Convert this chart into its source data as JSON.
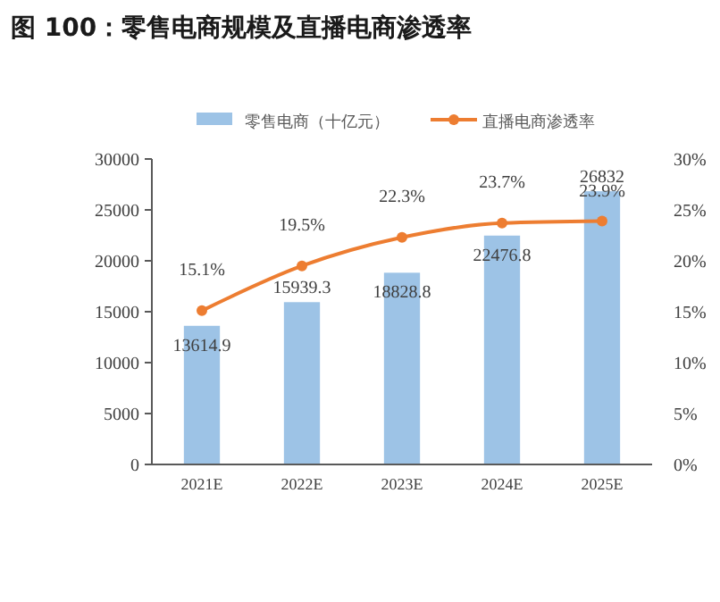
{
  "chart_data": {
    "type": "bar",
    "title": "图 100：零售电商规模及直播电商渗透率",
    "categories": [
      "2021E",
      "2022E",
      "2023E",
      "2024E",
      "2025E"
    ],
    "series": [
      {
        "name": "零售电商（十亿元）",
        "color": "#9dc3e6",
        "values": [
          13614.9,
          15939.3,
          18828.8,
          22476.8,
          26832
        ],
        "value_labels": [
          "13614.9",
          "15939.3",
          "18828.8",
          "22476.8",
          "26832"
        ]
      },
      {
        "name": "直播电商渗透率",
        "type": "line",
        "axis": "y2",
        "color": "#ed7d31",
        "values": [
          15.1,
          19.5,
          22.3,
          23.7,
          23.9
        ],
        "value_labels": [
          "15.1%",
          "19.5%",
          "22.3%",
          "23.7%",
          "23.9%"
        ]
      }
    ],
    "ylim": [
      0,
      30000
    ],
    "yticks": [
      0,
      5000,
      10000,
      15000,
      20000,
      25000,
      30000
    ],
    "y2lim": [
      0,
      30
    ],
    "y2ticks": [
      {
        "value": 0,
        "label": "0%"
      },
      {
        "value": 5,
        "label": "5%"
      },
      {
        "value": 10,
        "label": "10%"
      },
      {
        "value": 15,
        "label": "15%"
      },
      {
        "value": 20,
        "label": "20%"
      },
      {
        "value": 25,
        "label": "25%"
      },
      {
        "value": 30,
        "label": "30%"
      }
    ],
    "legend": "top",
    "marker": "circle",
    "grid": false
  }
}
